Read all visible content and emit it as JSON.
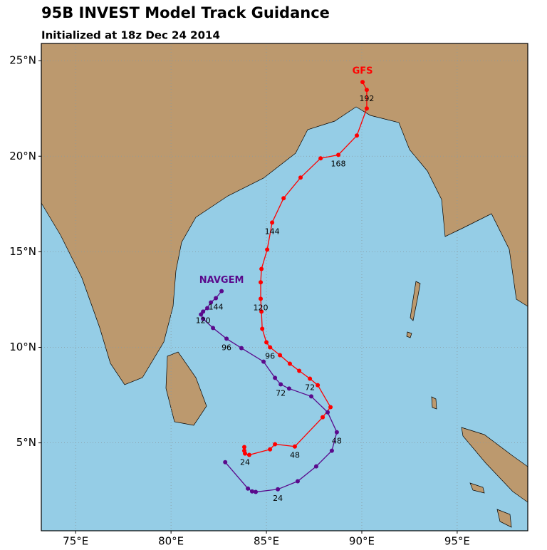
{
  "chart_data": {
    "type": "track",
    "title": "95B INVEST Model Track Guidance",
    "subtitle": "Initialized at 18z Dec 24 2014",
    "xlim": [
      73.2,
      98.7
    ],
    "ylim": [
      0.4,
      25.9
    ],
    "xticks": [
      {
        "value": 75,
        "label": "75°E"
      },
      {
        "value": 80,
        "label": "80°E"
      },
      {
        "value": 85,
        "label": "85°E"
      },
      {
        "value": 90,
        "label": "90°E"
      },
      {
        "value": 95,
        "label": "95°E"
      }
    ],
    "yticks": [
      {
        "value": 5,
        "label": "5°N"
      },
      {
        "value": 10,
        "label": "10°N"
      },
      {
        "value": 15,
        "label": "15°N"
      },
      {
        "value": 20,
        "label": "20°N"
      },
      {
        "value": 25,
        "label": "25°N"
      }
    ],
    "grid": true,
    "series": [
      {
        "name": "GFS",
        "color": "#ff0000",
        "x": [
          83.84,
          83.84,
          83.88,
          84.1,
          85.19,
          85.45,
          86.49,
          87.95,
          88.36,
          87.69,
          87.28,
          86.72,
          86.23,
          85.71,
          85.19,
          85.0,
          84.78,
          84.74,
          84.7,
          84.7,
          84.74,
          85.04,
          85.3,
          85.9,
          86.79,
          87.84,
          88.77,
          89.74,
          90.26,
          90.26,
          90.04
        ],
        "y": [
          4.78,
          4.59,
          4.44,
          4.37,
          4.66,
          4.93,
          4.81,
          6.34,
          6.87,
          8.02,
          8.36,
          8.77,
          9.14,
          9.59,
          10.0,
          10.26,
          10.97,
          11.87,
          12.54,
          13.4,
          14.1,
          15.11,
          16.53,
          17.8,
          18.88,
          19.89,
          20.07,
          21.08,
          22.5,
          23.47,
          23.88
        ],
        "point_labels": [
          null,
          null,
          24,
          null,
          null,
          null,
          48,
          null,
          null,
          null,
          72,
          null,
          null,
          null,
          96,
          null,
          null,
          null,
          120,
          null,
          null,
          null,
          144,
          null,
          null,
          null,
          168,
          null,
          null,
          192,
          null
        ]
      },
      {
        "name": "NAVGEM",
        "color": "#5a0a8c",
        "x": [
          82.84,
          84.03,
          84.25,
          84.44,
          85.6,
          86.64,
          87.61,
          88.43,
          88.69,
          88.21,
          87.35,
          86.19,
          85.75,
          85.45,
          84.85,
          83.69,
          82.91,
          82.2,
          81.68,
          81.57,
          81.68,
          81.9,
          82.09,
          82.35,
          82.65
        ],
        "y": [
          3.99,
          2.61,
          2.46,
          2.43,
          2.57,
          2.99,
          3.77,
          4.59,
          5.56,
          6.6,
          7.43,
          7.84,
          8.06,
          8.4,
          9.25,
          9.96,
          10.45,
          11.01,
          11.49,
          11.72,
          11.87,
          12.05,
          12.35,
          12.57,
          12.94
        ],
        "point_labels": [
          null,
          null,
          null,
          null,
          24,
          null,
          null,
          null,
          48,
          null,
          null,
          null,
          72,
          null,
          null,
          null,
          96,
          null,
          null,
          null,
          120,
          null,
          null,
          144,
          null
        ]
      }
    ]
  }
}
